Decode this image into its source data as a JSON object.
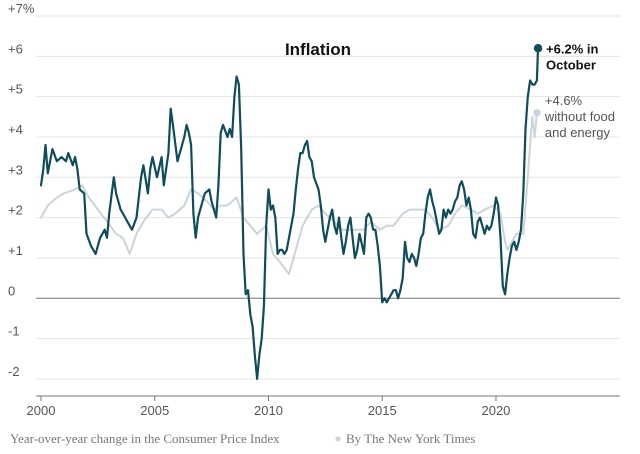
{
  "chart_data": {
    "type": "line",
    "title": "Inflation",
    "xlabel": "",
    "ylabel": "",
    "xlim": [
      2000,
      2022.2
    ],
    "ylim": [
      -2.2,
      7
    ],
    "y_ticks": [
      {
        "value": 7,
        "label": "+7%"
      },
      {
        "value": 6,
        "label": "+6"
      },
      {
        "value": 5,
        "label": "+5"
      },
      {
        "value": 4,
        "label": "+4"
      },
      {
        "value": 3,
        "label": "+3"
      },
      {
        "value": 2,
        "label": "+2"
      },
      {
        "value": 1,
        "label": "+1"
      },
      {
        "value": 0,
        "label": "0"
      },
      {
        "value": -1,
        "label": "-1"
      },
      {
        "value": -2,
        "label": "-2"
      }
    ],
    "x_ticks": [
      {
        "value": 2000,
        "label": "2000"
      },
      {
        "value": 2005,
        "label": "2005"
      },
      {
        "value": 2010,
        "label": "2010"
      },
      {
        "value": 2015,
        "label": "2015"
      },
      {
        "value": 2020,
        "label": "2020"
      }
    ],
    "grid": "horizontal",
    "series": [
      {
        "color": "#c9d4dc",
        "points": [
          [
            2000.0,
            2.0
          ],
          [
            2000.3,
            2.3
          ],
          [
            2000.7,
            2.5
          ],
          [
            2001.0,
            2.6
          ],
          [
            2001.5,
            2.7
          ],
          [
            2001.8,
            2.8
          ],
          [
            2002.1,
            2.5
          ],
          [
            2002.5,
            2.2
          ],
          [
            2002.9,
            1.9
          ],
          [
            2003.3,
            1.6
          ],
          [
            2003.6,
            1.5
          ],
          [
            2003.9,
            1.1
          ],
          [
            2004.2,
            1.6
          ],
          [
            2004.5,
            1.9
          ],
          [
            2004.9,
            2.2
          ],
          [
            2005.3,
            2.2
          ],
          [
            2005.6,
            2.0
          ],
          [
            2005.9,
            2.1
          ],
          [
            2006.3,
            2.3
          ],
          [
            2006.6,
            2.7
          ],
          [
            2006.9,
            2.6
          ],
          [
            2007.3,
            2.4
          ],
          [
            2007.6,
            2.2
          ],
          [
            2007.9,
            2.3
          ],
          [
            2008.2,
            2.3
          ],
          [
            2008.6,
            2.5
          ],
          [
            2008.9,
            2.0
          ],
          [
            2009.2,
            1.8
          ],
          [
            2009.5,
            1.6
          ],
          [
            2009.9,
            1.8
          ],
          [
            2010.2,
            1.1
          ],
          [
            2010.5,
            0.9
          ],
          [
            2010.9,
            0.6
          ],
          [
            2011.2,
            1.2
          ],
          [
            2011.5,
            1.8
          ],
          [
            2011.9,
            2.2
          ],
          [
            2012.2,
            2.3
          ],
          [
            2012.5,
            2.1
          ],
          [
            2012.9,
            1.9
          ],
          [
            2013.2,
            1.7
          ],
          [
            2013.5,
            1.7
          ],
          [
            2013.9,
            1.7
          ],
          [
            2014.2,
            1.7
          ],
          [
            2014.5,
            1.9
          ],
          [
            2014.9,
            1.7
          ],
          [
            2015.2,
            1.8
          ],
          [
            2015.5,
            1.8
          ],
          [
            2015.9,
            2.1
          ],
          [
            2016.2,
            2.2
          ],
          [
            2016.5,
            2.2
          ],
          [
            2016.9,
            2.2
          ],
          [
            2017.2,
            2.0
          ],
          [
            2017.5,
            1.7
          ],
          [
            2017.9,
            1.8
          ],
          [
            2018.2,
            2.1
          ],
          [
            2018.5,
            2.3
          ],
          [
            2018.9,
            2.2
          ],
          [
            2019.2,
            2.1
          ],
          [
            2019.5,
            2.2
          ],
          [
            2019.9,
            2.3
          ],
          [
            2020.2,
            2.1
          ],
          [
            2020.4,
            1.4
          ],
          [
            2020.5,
            1.2
          ],
          [
            2020.9,
            1.6
          ],
          [
            2021.2,
            1.6
          ],
          [
            2021.4,
            3.0
          ],
          [
            2021.5,
            3.8
          ],
          [
            2021.6,
            4.5
          ],
          [
            2021.7,
            4.0
          ],
          [
            2021.8,
            4.6
          ]
        ]
      },
      {
        "color": "#0d4d5c",
        "points": [
          [
            2000.0,
            2.8
          ],
          [
            2000.1,
            3.2
          ],
          [
            2000.2,
            3.8
          ],
          [
            2000.3,
            3.1
          ],
          [
            2000.5,
            3.7
          ],
          [
            2000.7,
            3.4
          ],
          [
            2000.9,
            3.5
          ],
          [
            2001.1,
            3.4
          ],
          [
            2001.2,
            3.6
          ],
          [
            2001.4,
            3.3
          ],
          [
            2001.5,
            3.5
          ],
          [
            2001.6,
            3.2
          ],
          [
            2001.7,
            2.7
          ],
          [
            2001.9,
            2.6
          ],
          [
            2002.0,
            1.6
          ],
          [
            2002.2,
            1.3
          ],
          [
            2002.4,
            1.1
          ],
          [
            2002.6,
            1.5
          ],
          [
            2002.8,
            1.7
          ],
          [
            2002.9,
            1.5
          ],
          [
            2003.0,
            2.1
          ],
          [
            2003.2,
            3.0
          ],
          [
            2003.3,
            2.6
          ],
          [
            2003.5,
            2.2
          ],
          [
            2003.7,
            2.0
          ],
          [
            2003.8,
            1.9
          ],
          [
            2004.0,
            1.7
          ],
          [
            2004.2,
            2.0
          ],
          [
            2004.4,
            3.0
          ],
          [
            2004.5,
            3.3
          ],
          [
            2004.7,
            2.6
          ],
          [
            2004.8,
            3.2
          ],
          [
            2004.9,
            3.5
          ],
          [
            2005.1,
            3.0
          ],
          [
            2005.3,
            3.5
          ],
          [
            2005.4,
            2.8
          ],
          [
            2005.5,
            3.2
          ],
          [
            2005.6,
            3.6
          ],
          [
            2005.7,
            4.7
          ],
          [
            2005.8,
            4.3
          ],
          [
            2006.0,
            3.4
          ],
          [
            2006.1,
            3.6
          ],
          [
            2006.3,
            4.0
          ],
          [
            2006.4,
            4.3
          ],
          [
            2006.5,
            4.1
          ],
          [
            2006.6,
            3.8
          ],
          [
            2006.7,
            2.1
          ],
          [
            2006.8,
            1.5
          ],
          [
            2006.9,
            2.0
          ],
          [
            2007.1,
            2.4
          ],
          [
            2007.2,
            2.6
          ],
          [
            2007.4,
            2.7
          ],
          [
            2007.5,
            2.4
          ],
          [
            2007.7,
            2.0
          ],
          [
            2007.8,
            2.8
          ],
          [
            2007.9,
            4.1
          ],
          [
            2008.0,
            4.3
          ],
          [
            2008.2,
            4.0
          ],
          [
            2008.3,
            4.2
          ],
          [
            2008.4,
            4.0
          ],
          [
            2008.5,
            5.0
          ],
          [
            2008.6,
            5.5
          ],
          [
            2008.7,
            5.3
          ],
          [
            2008.8,
            3.7
          ],
          [
            2008.9,
            1.1
          ],
          [
            2009.0,
            0.1
          ],
          [
            2009.1,
            0.2
          ],
          [
            2009.2,
            -0.4
          ],
          [
            2009.3,
            -0.7
          ],
          [
            2009.4,
            -1.4
          ],
          [
            2009.5,
            -2.0
          ],
          [
            2009.6,
            -1.4
          ],
          [
            2009.7,
            -1.0
          ],
          [
            2009.8,
            -0.2
          ],
          [
            2009.9,
            1.8
          ],
          [
            2010.0,
            2.7
          ],
          [
            2010.1,
            2.2
          ],
          [
            2010.2,
            2.3
          ],
          [
            2010.3,
            2.0
          ],
          [
            2010.4,
            1.1
          ],
          [
            2010.5,
            1.2
          ],
          [
            2010.6,
            1.2
          ],
          [
            2010.7,
            1.1
          ],
          [
            2010.8,
            1.2
          ],
          [
            2010.9,
            1.5
          ],
          [
            2011.1,
            2.1
          ],
          [
            2011.2,
            2.7
          ],
          [
            2011.3,
            3.2
          ],
          [
            2011.4,
            3.6
          ],
          [
            2011.5,
            3.6
          ],
          [
            2011.6,
            3.8
          ],
          [
            2011.7,
            3.9
          ],
          [
            2011.8,
            3.5
          ],
          [
            2011.9,
            3.4
          ],
          [
            2012.0,
            3.0
          ],
          [
            2012.2,
            2.7
          ],
          [
            2012.3,
            2.3
          ],
          [
            2012.4,
            1.7
          ],
          [
            2012.5,
            1.4
          ],
          [
            2012.6,
            1.7
          ],
          [
            2012.7,
            2.0
          ],
          [
            2012.8,
            2.2
          ],
          [
            2012.9,
            1.8
          ],
          [
            2013.0,
            1.6
          ],
          [
            2013.1,
            2.0
          ],
          [
            2013.2,
            1.5
          ],
          [
            2013.3,
            1.1
          ],
          [
            2013.4,
            1.4
          ],
          [
            2013.5,
            1.8
          ],
          [
            2013.6,
            2.0
          ],
          [
            2013.7,
            1.5
          ],
          [
            2013.8,
            1.0
          ],
          [
            2013.9,
            1.2
          ],
          [
            2014.0,
            1.6
          ],
          [
            2014.2,
            1.1
          ],
          [
            2014.3,
            2.0
          ],
          [
            2014.4,
            2.1
          ],
          [
            2014.5,
            2.0
          ],
          [
            2014.6,
            1.7
          ],
          [
            2014.7,
            1.7
          ],
          [
            2014.8,
            1.3
          ],
          [
            2014.9,
            0.8
          ],
          [
            2015.0,
            -0.1
          ],
          [
            2015.1,
            0.0
          ],
          [
            2015.2,
            -0.1
          ],
          [
            2015.3,
            0.0
          ],
          [
            2015.4,
            0.1
          ],
          [
            2015.5,
            0.2
          ],
          [
            2015.6,
            0.2
          ],
          [
            2015.7,
            0.0
          ],
          [
            2015.8,
            0.2
          ],
          [
            2015.9,
            0.5
          ],
          [
            2016.0,
            1.4
          ],
          [
            2016.1,
            1.0
          ],
          [
            2016.2,
            0.9
          ],
          [
            2016.3,
            1.1
          ],
          [
            2016.4,
            1.0
          ],
          [
            2016.5,
            0.8
          ],
          [
            2016.6,
            1.1
          ],
          [
            2016.7,
            1.5
          ],
          [
            2016.8,
            1.6
          ],
          [
            2016.9,
            2.1
          ],
          [
            2017.0,
            2.5
          ],
          [
            2017.1,
            2.7
          ],
          [
            2017.2,
            2.4
          ],
          [
            2017.3,
            2.2
          ],
          [
            2017.4,
            1.9
          ],
          [
            2017.5,
            1.6
          ],
          [
            2017.6,
            1.7
          ],
          [
            2017.7,
            2.2
          ],
          [
            2017.8,
            2.0
          ],
          [
            2017.9,
            2.2
          ],
          [
            2018.0,
            2.1
          ],
          [
            2018.1,
            2.2
          ],
          [
            2018.2,
            2.4
          ],
          [
            2018.3,
            2.5
          ],
          [
            2018.4,
            2.8
          ],
          [
            2018.5,
            2.9
          ],
          [
            2018.6,
            2.7
          ],
          [
            2018.7,
            2.3
          ],
          [
            2018.8,
            2.5
          ],
          [
            2018.9,
            2.2
          ],
          [
            2019.0,
            1.6
          ],
          [
            2019.1,
            1.5
          ],
          [
            2019.2,
            1.9
          ],
          [
            2019.3,
            2.0
          ],
          [
            2019.4,
            1.8
          ],
          [
            2019.5,
            1.6
          ],
          [
            2019.6,
            1.8
          ],
          [
            2019.7,
            1.7
          ],
          [
            2019.8,
            1.8
          ],
          [
            2019.9,
            2.1
          ],
          [
            2020.0,
            2.5
          ],
          [
            2020.1,
            2.3
          ],
          [
            2020.2,
            1.5
          ],
          [
            2020.3,
            0.3
          ],
          [
            2020.4,
            0.1
          ],
          [
            2020.5,
            0.6
          ],
          [
            2020.6,
            1.0
          ],
          [
            2020.7,
            1.3
          ],
          [
            2020.8,
            1.4
          ],
          [
            2020.9,
            1.2
          ],
          [
            2021.0,
            1.4
          ],
          [
            2021.1,
            1.7
          ],
          [
            2021.2,
            2.6
          ],
          [
            2021.3,
            4.2
          ],
          [
            2021.4,
            5.0
          ],
          [
            2021.5,
            5.4
          ],
          [
            2021.6,
            5.3
          ],
          [
            2021.7,
            5.3
          ],
          [
            2021.8,
            5.4
          ],
          [
            2021.85,
            6.2
          ]
        ]
      }
    ],
    "annotations": [
      {
        "lines": [
          "+6.2% in",
          "October"
        ],
        "style": "main",
        "color": "#0d4d5c",
        "x": 2021.85,
        "y": 6.2
      },
      {
        "lines": [
          "+4.6%",
          "without food",
          "and energy"
        ],
        "style": "core",
        "color": "#c9d4dc",
        "x": 2021.8,
        "y": 4.6
      }
    ],
    "source": "Year-over-year change in the Consumer Price Index",
    "credit": "By The New York Times"
  }
}
